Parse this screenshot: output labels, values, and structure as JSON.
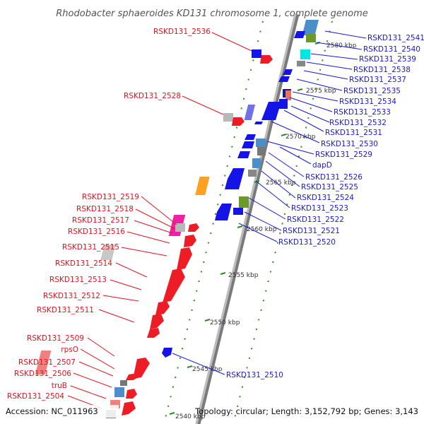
{
  "title": "Rhodobacter sphaeroides KD131 chromosome 1, complete genome",
  "footer": {
    "accession": "Accession: NC_011963",
    "topology": "Topology: circular; Length: 3,152,792 bp; Genes: 3,143"
  },
  "kbp_ticks": [
    "2580 kbp",
    "2575 kbp",
    "2570 kbp",
    "2565 kbp",
    "2560 kbp",
    "2555 kbp",
    "2550 kbp",
    "2545 kbp",
    "2540 kbp"
  ],
  "left_labels": [
    "RSKD131_2536",
    "RSKD131_2528",
    "RSKD131_2519",
    "RSKD131_2518",
    "RSKD131_2517",
    "RSKD131_2516",
    "RSKD131_2515",
    "RSKD131_2514",
    "RSKD131_2513",
    "RSKD131_2512",
    "RSKD131_2511",
    "RSKD131_2509",
    "rpsO",
    "RSKD131_2507",
    "RSKD131_2506",
    "truB",
    "RSKD131_2504"
  ],
  "right_labels": [
    "RSKD131_2541",
    "RSKD131_2540",
    "RSKD131_2539",
    "RSKD131_2538",
    "RSKD131_2537",
    "RSKD131_2535",
    "RSKD131_2534",
    "RSKD131_2533",
    "RSKD131_2532",
    "RSKD131_2531",
    "RSKD131_2530",
    "RSKD131_2529",
    "dapD",
    "RSKD131_2526",
    "RSKD131_2525",
    "RSKD131_2524",
    "RSKD131_2523",
    "RSKD131_2522",
    "RSKD131_2521",
    "RSKD131_2520",
    "RSKD131_2510"
  ],
  "colors": {
    "forward_label": "#e0141e",
    "reverse_label": "#1a1ad4",
    "backbone": "#8c8c8c",
    "tick": "#2e8b22"
  }
}
